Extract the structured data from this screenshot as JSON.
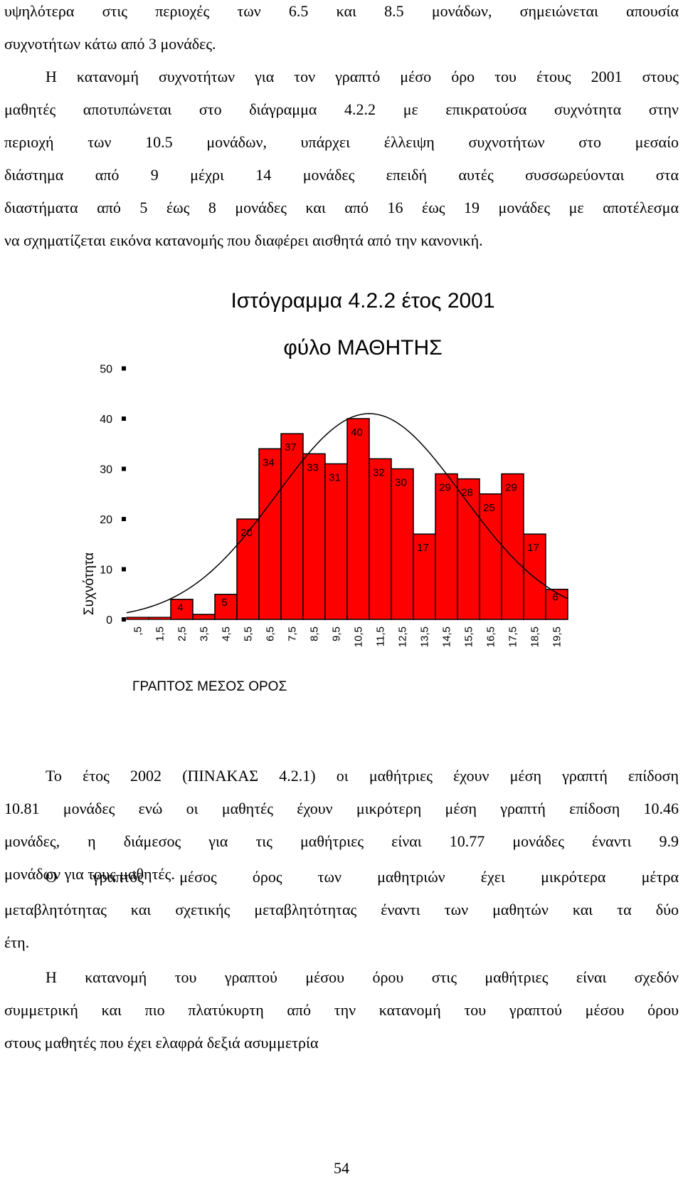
{
  "paragraphs": [
    {
      "lines": [
        "υψηλότερα στις περιοχές των 6.5 και 8.5 μονάδων, σημειώνεται απουσία",
        "συχνοτήτων κάτω από 3 μονάδες.",
        "Η κατανομή συχνοτήτων για τον γραπτό μέσο όρο του έτους 2001 στους",
        "μαθητές αποτυπώνεται στο διάγραμμα 4.2.2 με επικρατούσα συχνότητα στην",
        "περιοχή των 10.5 μονάδων, υπάρχει έλλειψη συχνοτήτων στο μεσαίο",
        "διάστημα από 9 μέχρι 14 μονάδες επειδή αυτές συσσωρεύονται στα",
        "διαστήματα από 5 έως 8 μονάδες και από 16 έως 19 μονάδες με αποτέλεσμα",
        "να σχηματίζεται εικόνα κατανομής που διαφέρει αισθητά από την κανονική."
      ]
    },
    {
      "lines": [
        "Το έτος 2002 (ΠΙΝΑΚΑΣ 4.2.1) οι μαθήτριες έχουν μέση γραπτή επίδοση",
        "10.81 μονάδες ενώ οι μαθητές έχουν μικρότερη μέση γραπτή επίδοση 10.46",
        "μονάδες, η  διάμεσος για τις μαθήτριες είναι 10.77 μονάδες έναντι 9.9",
        "μονάδων για τους μαθητές."
      ]
    },
    {
      "lines": [
        "Ο γραπτός μέσος όρος των μαθητριών έχει μικρότερα μέτρα",
        "μεταβλητότητας και σχετικής μεταβλητότητας έναντι των μαθητών και τα δύο",
        "έτη."
      ]
    },
    {
      "lines": [
        "Η κατανομή του γραπτού μέσου όρου στις μαθήτριες είναι σχεδόν",
        "συμμετρική και πιο πλατύκυρτη από την κατανομή του γραπτού μέσου όρου",
        "στους μαθητές που έχει ελαφρά δεξιά ασυμμετρία"
      ]
    }
  ],
  "chart_data": {
    "type": "bar",
    "title": "Ιστόγραμμα 4.2.2 έτος 2001",
    "subtitle": "φύλο ΜΑΘΗΤΗΣ",
    "xlabel": "ΓΡΑΠΤΟΣ ΜΕΣΟΣ ΟΡΟΣ",
    "ylabel": "Συχνότητα",
    "categories": [
      ",5",
      "1,5",
      "2,5",
      "3,5",
      "4,5",
      "5,5",
      "6,5",
      "7,5",
      "8,5",
      "9,5",
      "10,5",
      "11,5",
      "12,5",
      "13,5",
      "14,5",
      "15,5",
      "16,5",
      "17,5",
      "18,5",
      "19,5"
    ],
    "values": [
      0,
      0,
      4,
      1,
      5,
      20,
      34,
      37,
      33,
      31,
      40,
      32,
      30,
      17,
      29,
      28,
      25,
      29,
      17,
      6
    ],
    "data_labels": [
      "",
      "",
      "4",
      "",
      "5",
      "20",
      "34",
      "37",
      "33",
      "31",
      "40",
      "32",
      "30",
      "17",
      "29",
      "28",
      "25",
      "29",
      "17",
      "6"
    ],
    "yticks": [
      "0",
      "10",
      "20",
      "30",
      "40",
      "50"
    ],
    "ylim": [
      0,
      50
    ],
    "normal_curve": {
      "mean": 11.0,
      "sd": 4.2,
      "peak": 41
    },
    "bar_color": "#ff0000",
    "edge_color": "#000000"
  },
  "page_number": "54"
}
